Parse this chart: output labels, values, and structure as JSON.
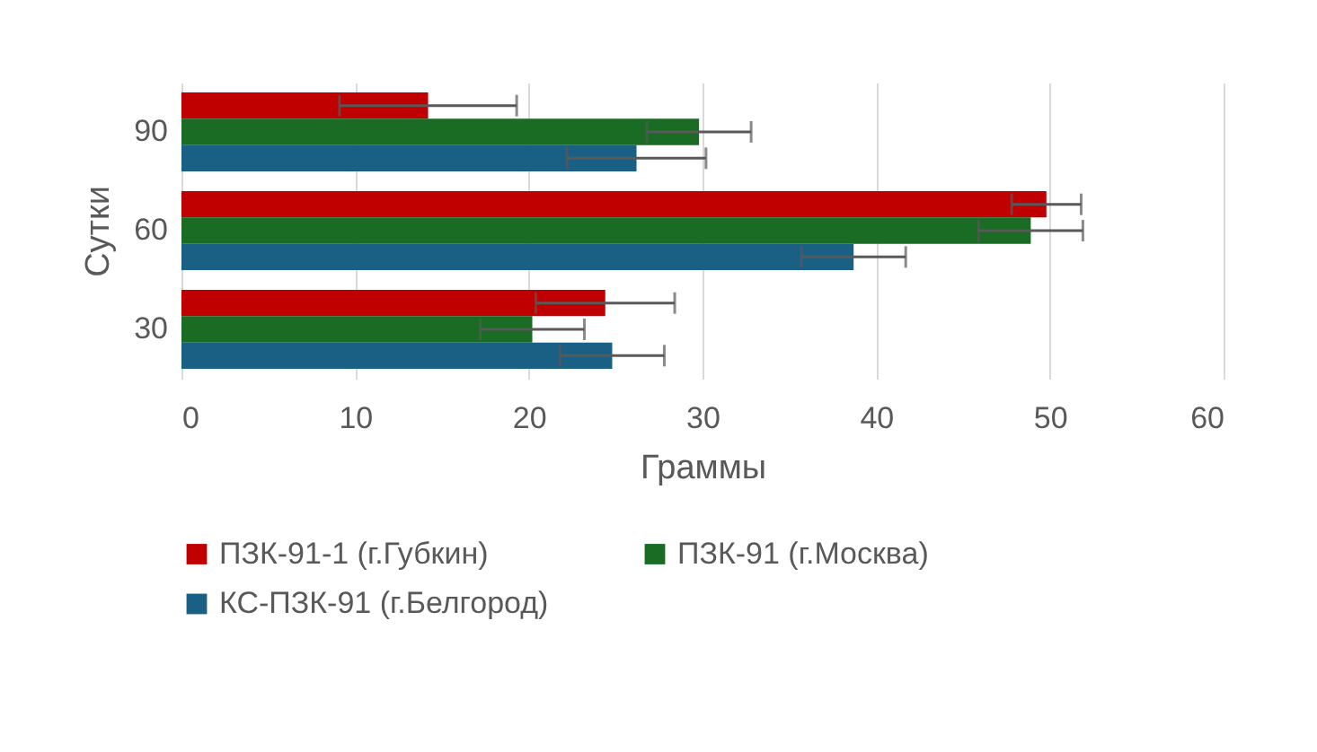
{
  "chart_data": {
    "type": "bar",
    "orientation": "horizontal",
    "xlabel": "Граммы",
    "ylabel": "Сутки",
    "categories": [
      "90",
      "60",
      "30"
    ],
    "series": [
      {
        "name": "ПЗК-91-1 (г.Губкин)",
        "color": "#c00000",
        "values": [
          14.2,
          49.8,
          24.4
        ],
        "errors": [
          5.1,
          2,
          4
        ]
      },
      {
        "name": "ПЗК-91 (г.Москва)",
        "color": "#1a6b24",
        "values": [
          29.8,
          48.9,
          20.2
        ],
        "errors": [
          3,
          3,
          3
        ]
      },
      {
        "name": "КС-ПЗК-91 (г.Белгород)",
        "color": "#1a6085",
        "values": [
          26.2,
          38.7,
          24.8
        ],
        "errors": [
          4,
          3,
          3
        ]
      }
    ],
    "xlim": [
      0,
      60
    ],
    "xticks": [
      0,
      10,
      20,
      30,
      40,
      50,
      60
    ],
    "grid": "x",
    "legend": "bottom"
  }
}
